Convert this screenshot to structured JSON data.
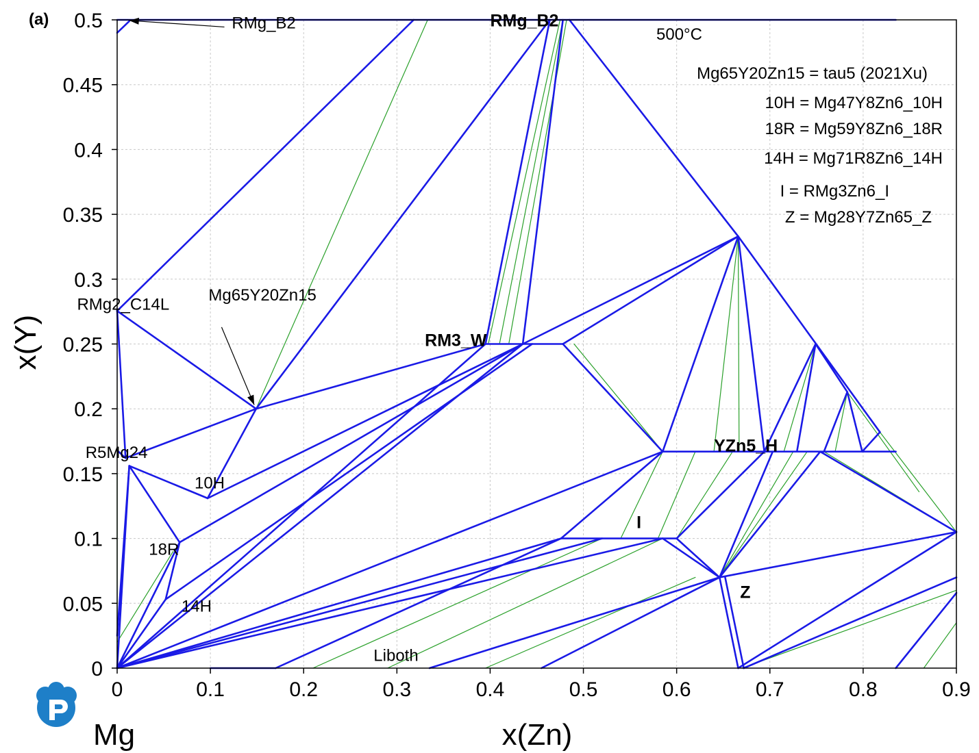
{
  "chart_data": {
    "type": "line",
    "title": "500°C",
    "panel_label": "(a)",
    "xlabel": "x(Zn)",
    "ylabel": "x(Y)",
    "xlim": [
      0,
      0.9
    ],
    "ylim": [
      0,
      0.5
    ],
    "x_ticks": [
      "0",
      "0.1",
      "0.2",
      "0.3",
      "0.4",
      "0.5",
      "0.6",
      "0.7",
      "0.8",
      "0.9"
    ],
    "y_ticks": [
      "0",
      "0.05",
      "0.1",
      "0.15",
      "0.2",
      "0.25",
      "0.3",
      "0.35",
      "0.4",
      "0.45",
      "0.5"
    ],
    "grid": true,
    "corner_label": "Mg",
    "colors": {
      "phase_boundary": "#1a1ae6",
      "tie_line": "#2aa02a",
      "grid": "#c8c8c8"
    },
    "legend": [
      "Mg65Y20Zn15 = tau5 (2021Xu)",
      "10H = Mg47Y8Zn6_10H",
      "18R = Mg59Y8Zn6_18R",
      "14H = Mg71R8Zn6_14H",
      "I = RMg3Zn6_I",
      "Z = Mg28Y7Zn65_Z"
    ],
    "phase_labels": [
      {
        "text": "RMg_B2",
        "x": 0.4,
        "y": 0.495,
        "bold": true
      },
      {
        "text": "RM3_W",
        "x": 0.33,
        "y": 0.2485,
        "bold": true
      },
      {
        "text": "YZn5_H",
        "x": 0.64,
        "y": 0.167,
        "bold": true
      },
      {
        "text": "I",
        "x": 0.557,
        "y": 0.108,
        "bold": true
      },
      {
        "text": "Z",
        "x": 0.668,
        "y": 0.054,
        "bold": true
      },
      {
        "text": "RMg_B2",
        "x": 0.123,
        "y": 0.4935,
        "bold": false
      },
      {
        "text": "RMg2_C14L",
        "x": -0.043,
        "y": 0.2765,
        "bold": false
      },
      {
        "text": "Mg65Y20Zn15",
        "x": 0.098,
        "y": 0.2835,
        "bold": false
      },
      {
        "text": "R5Mg24",
        "x": -0.034,
        "y": 0.162,
        "bold": false
      },
      {
        "text": "10H",
        "x": 0.083,
        "y": 0.1385,
        "bold": false
      },
      {
        "text": "18R",
        "x": 0.034,
        "y": 0.0875,
        "bold": false
      },
      {
        "text": "14H",
        "x": 0.069,
        "y": 0.0435,
        "bold": false
      },
      {
        "text": "Liboth",
        "x": 0.275,
        "y": 0.0055,
        "bold": false
      }
    ],
    "arrows": [
      {
        "from": [
          0.115,
          0.4945
        ],
        "to": [
          0.013,
          0.4995
        ]
      },
      {
        "from": [
          0.112,
          0.263
        ],
        "to": [
          0.147,
          0.203
        ]
      }
    ],
    "series": [
      {
        "name": "phase_boundaries",
        "segments": [
          [
            [
              0,
              0.2755
            ],
            [
              0.318,
              0.5
            ]
          ],
          [
            [
              0,
              0.2755
            ],
            [
              0.149,
              0.2
            ]
          ],
          [
            [
              0.149,
              0.2
            ],
            [
              0.464,
              0.5
            ]
          ],
          [
            [
              0.149,
              0.2
            ],
            [
              0.395,
              0.25
            ]
          ],
          [
            [
              0.097,
              0.131
            ],
            [
              0.149,
              0.2
            ]
          ],
          [
            [
              0.097,
              0.131
            ],
            [
              0.435,
              0.25
            ]
          ],
          [
            [
              0.067,
              0.097
            ],
            [
              0.435,
              0.25
            ]
          ],
          [
            [
              0.052,
              0.053
            ],
            [
              0.445,
              0.25
            ]
          ],
          [
            [
              0,
              0.276
            ],
            [
              0.009,
              0.162
            ]
          ],
          [
            [
              0.009,
              0.162
            ],
            [
              0.149,
              0.2
            ]
          ],
          [
            [
              0.013,
              0.156
            ],
            [
              0.097,
              0.131
            ]
          ],
          [
            [
              0.013,
              0.156
            ],
            [
              0.067,
              0.097
            ]
          ],
          [
            [
              0.067,
              0.097
            ],
            [
              0.052,
              0.053
            ]
          ],
          [
            [
              0,
              0.168
            ],
            [
              0.009,
              0.162
            ]
          ],
          [
            [
              0,
              0.0
            ],
            [
              0.395,
              0.25
            ]
          ],
          [
            [
              0,
              0.0
            ],
            [
              0.435,
              0.25
            ]
          ],
          [
            [
              0,
              0.0
            ],
            [
              0.585,
              0.167
            ]
          ],
          [
            [
              0,
              0.0
            ],
            [
              0.476,
              0.1
            ]
          ],
          [
            [
              0,
              0.0
            ],
            [
              0.52,
              0.1
            ]
          ],
          [
            [
              0,
              0.0
            ],
            [
              0.585,
              0.1
            ]
          ],
          [
            [
              0,
              0.0
            ],
            [
              0.052,
              0.053
            ]
          ],
          [
            [
              0,
              0.0
            ],
            [
              0.067,
              0.097
            ]
          ],
          [
            [
              0,
              0.0
            ],
            [
              0.013,
              0.156
            ]
          ],
          [
            [
              0,
              0.025
            ],
            [
              0.013,
              0.156
            ]
          ],
          [
            [
              0,
              0.5
            ],
            [
              0.835,
              0.5
            ]
          ],
          [
            [
              0,
              0.49
            ],
            [
              0.013,
              0.499
            ]
          ],
          [
            [
              0.395,
              0.25
            ],
            [
              0.478,
              0.25
            ]
          ],
          [
            [
              0.395,
              0.25
            ],
            [
              0.464,
              0.5
            ]
          ],
          [
            [
              0.435,
              0.25
            ],
            [
              0.478,
              0.5
            ]
          ],
          [
            [
              0.478,
              0.25
            ],
            [
              0.666,
              0.333
            ]
          ],
          [
            [
              0.435,
              0.25
            ],
            [
              0.666,
              0.333
            ]
          ],
          [
            [
              0.478,
              0.25
            ],
            [
              0.585,
              0.167
            ]
          ],
          [
            [
              0.485,
              0.5
            ],
            [
              0.666,
              0.333
            ]
          ],
          [
            [
              0.666,
              0.333
            ],
            [
              0.818,
              0.182
            ]
          ],
          [
            [
              0.666,
              0.333
            ],
            [
              0.585,
              0.167
            ]
          ],
          [
            [
              0.666,
              0.333
            ],
            [
              0.694,
              0.167
            ]
          ],
          [
            [
              0.585,
              0.167
            ],
            [
              0.835,
              0.167
            ]
          ],
          [
            [
              0.694,
              0.167
            ],
            [
              0.749,
              0.25
            ]
          ],
          [
            [
              0.729,
              0.167
            ],
            [
              0.749,
              0.25
            ]
          ],
          [
            [
              0.749,
              0.25
            ],
            [
              0.783,
              0.213
            ]
          ],
          [
            [
              0.758,
              0.167
            ],
            [
              0.783,
              0.213
            ]
          ],
          [
            [
              0.799,
              0.167
            ],
            [
              0.783,
              0.213
            ]
          ],
          [
            [
              0.799,
              0.167
            ],
            [
              0.818,
              0.182
            ]
          ],
          [
            [
              0.476,
              0.1
            ],
            [
              0.6,
              0.1
            ]
          ],
          [
            [
              0.476,
              0.1
            ],
            [
              0.585,
              0.167
            ]
          ],
          [
            [
              0.6,
              0.1
            ],
            [
              0.646,
              0.07
            ]
          ],
          [
            [
              0.585,
              0.1
            ],
            [
              0.646,
              0.07
            ]
          ],
          [
            [
              0.6,
              0.1
            ],
            [
              0.694,
              0.167
            ]
          ],
          [
            [
              0.646,
              0.07
            ],
            [
              0.9,
              0.105
            ]
          ],
          [
            [
              0.646,
              0.07
            ],
            [
              0.703,
              0.167
            ]
          ],
          [
            [
              0.646,
              0.07
            ],
            [
              0.754,
              0.167
            ]
          ],
          [
            [
              0.646,
              0.07
            ],
            [
              0.666,
              0.0
            ]
          ],
          [
            [
              0.652,
              0.07
            ],
            [
              0.672,
              0.0
            ]
          ],
          [
            [
              0.666,
              0.0
            ],
            [
              0.9,
              0.105
            ]
          ],
          [
            [
              0.754,
              0.167
            ],
            [
              0.9,
              0.105
            ]
          ],
          [
            [
              0.672,
              0.0
            ],
            [
              0.9,
              0.07
            ]
          ],
          [
            [
              0.835,
              0.0
            ],
            [
              0.9,
              0.058
            ]
          ],
          [
            [
              0.17,
              0.0
            ],
            [
              0.476,
              0.1
            ]
          ],
          [
            [
              0.335,
              0.0
            ],
            [
              0.646,
              0.07
            ]
          ],
          [
            [
              0.455,
              0.0
            ],
            [
              0.646,
              0.07
            ]
          ],
          [
            [
              0.1,
              0.0
            ],
            [
              0.17,
              0.0
            ]
          ]
        ]
      },
      {
        "name": "tie_lines",
        "segments": [
          [
            [
              0.149,
              0.2
            ],
            [
              0.333,
              0.5
            ]
          ],
          [
            [
              0.398,
              0.25
            ],
            [
              0.475,
              0.5
            ]
          ],
          [
            [
              0.41,
              0.25
            ],
            [
              0.478,
              0.5
            ]
          ],
          [
            [
              0.42,
              0.25
            ],
            [
              0.482,
              0.5
            ]
          ],
          [
            [
              0.49,
              0.25
            ],
            [
              0.585,
              0.167
            ]
          ],
          [
            [
              0.666,
              0.333
            ],
            [
              0.64,
              0.167
            ]
          ],
          [
            [
              0.666,
              0.333
            ],
            [
              0.667,
              0.167
            ]
          ],
          [
            [
              0.749,
              0.25
            ],
            [
              0.715,
              0.167
            ]
          ],
          [
            [
              0.783,
              0.213
            ],
            [
              0.77,
              0.167
            ]
          ],
          [
            [
              0.783,
              0.213
            ],
            [
              0.86,
              0.136
            ]
          ],
          [
            [
              0.818,
              0.182
            ],
            [
              0.9,
              0.105
            ]
          ],
          [
            [
              0.585,
              0.167
            ],
            [
              0.54,
              0.1
            ]
          ],
          [
            [
              0.62,
              0.167
            ],
            [
              0.58,
              0.1
            ]
          ],
          [
            [
              0.6,
              0.1
            ],
            [
              0.66,
              0.167
            ]
          ],
          [
            [
              0.646,
              0.07
            ],
            [
              0.725,
              0.167
            ]
          ],
          [
            [
              0.646,
              0.07
            ],
            [
              0.74,
              0.167
            ]
          ],
          [
            [
              0.758,
              0.167
            ],
            [
              0.9,
              0.105
            ]
          ],
          [
            [
              0.21,
              0.0
            ],
            [
              0.52,
              0.1
            ]
          ],
          [
            [
              0.29,
              0.0
            ],
            [
              0.585,
              0.1
            ]
          ],
          [
            [
              0.395,
              0.0
            ],
            [
              0.62,
              0.07
            ]
          ],
          [
            [
              0.865,
              0.0
            ],
            [
              0.9,
              0.035
            ]
          ],
          [
            [
              0,
              0.0
            ],
            [
              0.0,
              0.15
            ]
          ],
          [
            [
              0,
              0.02
            ],
            [
              0.06,
              0.09
            ]
          ],
          [
            [
              0.67,
              0.0
            ],
            [
              0.9,
              0.06
            ]
          ]
        ]
      }
    ]
  }
}
